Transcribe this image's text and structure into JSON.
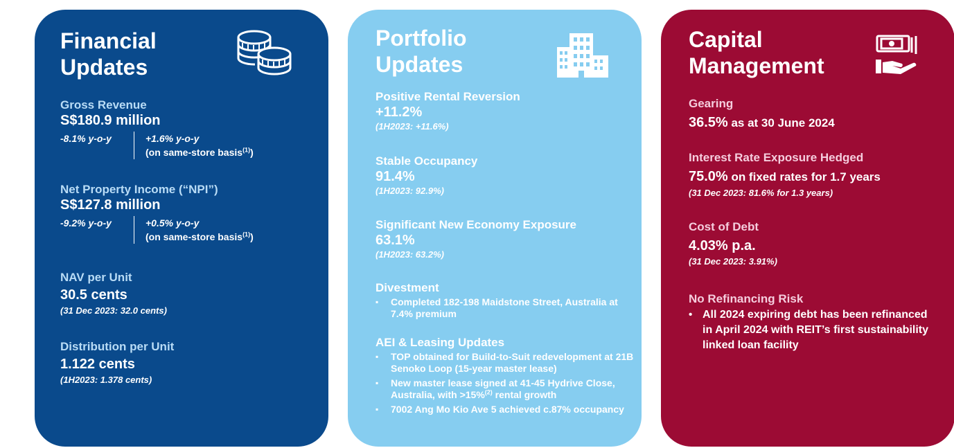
{
  "financial": {
    "title_line1": "Financial",
    "title_line2": "Updates",
    "gross_revenue": {
      "label": "Gross Revenue",
      "value": "S$180.9 million",
      "yoy": "-8.1% y-o-y",
      "same_store_yoy": "+1.6% y-o-y",
      "same_store_note": "(on same-store basis",
      "footnote": "(1)",
      "close": ")"
    },
    "npi": {
      "label": "Net Property Income (“NPI”)",
      "value": "S$127.8 million",
      "yoy": "-9.2% y-o-y",
      "same_store_yoy": "+0.5% y-o-y",
      "same_store_note": "(on same-store basis",
      "footnote": "(1)",
      "close": ")"
    },
    "nav": {
      "label": "NAV per Unit",
      "value": "30.5 cents",
      "note": "(31 Dec 2023: 32.0 cents)"
    },
    "dpu": {
      "label": "Distribution per Unit",
      "value": "1.122 cents",
      "note": "(1H2023: 1.378 cents)"
    }
  },
  "portfolio": {
    "title_line1": "Portfolio",
    "title_line2": "Updates",
    "reversion": {
      "label": "Positive Rental Reversion",
      "value": "+11.2%",
      "note": "(1H2023: +11.6%)"
    },
    "occupancy": {
      "label": "Stable Occupancy",
      "value": "91.4%",
      "note": "(1H2023: 92.9%)"
    },
    "new_economy": {
      "label": "Significant New Economy Exposure",
      "value": "63.1%",
      "note": "(1H2023: 63.2%)"
    },
    "divestment": {
      "label": "Divestment",
      "items": [
        "Completed 182-198 Maidstone Street, Australia at 7.4% premium"
      ]
    },
    "aei": {
      "label": "AEI & Leasing Updates",
      "item1": "TOP obtained for Build-to-Suit redevelopment at 21B Senoko Loop (15-year master lease)",
      "item2_a": "New master lease signed at 41-45 Hydrive Close, Australia, with >15%",
      "item2_sup": "(2)",
      "item2_b": " rental growth",
      "item3": "7002 Ang Mo Kio Ave 5 achieved c.87% occupancy"
    }
  },
  "capital": {
    "title_line1": "Capital",
    "title_line2": "Management",
    "gearing": {
      "label": "Gearing",
      "value": "36.5%",
      "value_suffix": " as at 30 June 2024"
    },
    "hedged": {
      "label": "Interest Rate Exposure Hedged",
      "value": "75.0%",
      "value_suffix": " on fixed rates for 1.7 years",
      "note": "(31 Dec 2023: 81.6% for 1.3 years)"
    },
    "cost_of_debt": {
      "label": "Cost of Debt",
      "value": "4.03% p.a.",
      "note": "(31 Dec 2023: 3.91%)"
    },
    "refinancing": {
      "label": "No Refinancing Risk",
      "items": [
        "All 2024 expiring debt has been refinanced in April 2024 with REIT’s first sustainability linked loan facility"
      ]
    },
    "icon": "money-hand-icon"
  },
  "icons": {
    "financial": "coins-icon",
    "portfolio": "buildings-icon",
    "capital": "money-hand-icon"
  },
  "colors": {
    "financial_bg": "#0a4a8c",
    "portfolio_bg": "#86cdf0",
    "capital_bg": "#9c0b34"
  }
}
